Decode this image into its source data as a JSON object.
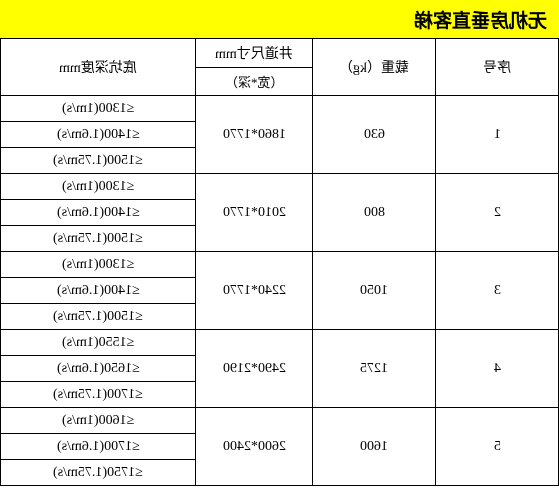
{
  "title": "无机房垂直客梯",
  "headers": {
    "depth": "底坑深度mm",
    "dim_top": "井道尺寸mm",
    "dim_sub": "（宽*深）",
    "load": "载重（kg）",
    "seq": "序号"
  },
  "groups": [
    {
      "seq": "1",
      "load": "630",
      "dim": "1860*1770",
      "depths": [
        "≤1300(1m/s)",
        "≤1400(1.6m/s)",
        "≤1500(1.75m/s)"
      ]
    },
    {
      "seq": "2",
      "load": "800",
      "dim": "2010*1770",
      "depths": [
        "≤1300(1m/s)",
        "≤1400(1.6m/s)",
        "≤1500(1.75m/s)"
      ]
    },
    {
      "seq": "3",
      "load": "1050",
      "dim": "2240*1770",
      "depths": [
        "≤1300(1m/s)",
        "≤1400(1.6m/s)",
        "≤1500(1.75m/s)"
      ]
    },
    {
      "seq": "4",
      "load": "1275",
      "dim": "2490*2190",
      "depths": [
        "≤1550(1m/s)",
        "≤1650(1.6m/s)",
        "≤1700(1.75m/s)"
      ]
    },
    {
      "seq": "5",
      "load": "1600",
      "dim": "2600*2400",
      "depths": [
        "≤1600(1m/s)",
        "≤1700(1.6m/s)",
        "≤1750(1.75m/s)"
      ]
    }
  ],
  "colors": {
    "title_bg": "#ffff00",
    "border": "#000000",
    "background": "#ffffff"
  }
}
